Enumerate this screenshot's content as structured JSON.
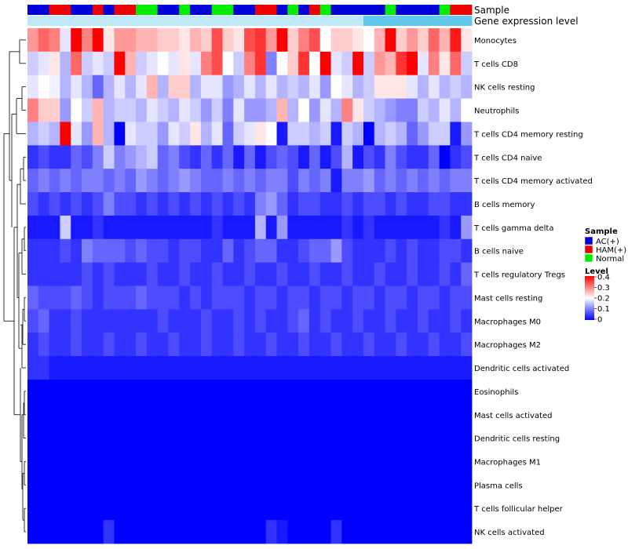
{
  "chart_data": {
    "type": "heatmap",
    "title": "",
    "annotations": {
      "sample_label": "Sample",
      "gene_label": "Gene expression level",
      "sample_groups": [
        "AC(+)",
        "AC(+)",
        "HAM(+)",
        "HAM(+)",
        "AC(+)",
        "AC(+)",
        "HAM(+)",
        "AC(+)",
        "HAM(+)",
        "HAM(+)",
        "Normal",
        "Normal",
        "AC(+)",
        "AC(+)",
        "Normal",
        "AC(+)",
        "AC(+)",
        "Normal",
        "Normal",
        "AC(+)",
        "AC(+)",
        "HAM(+)",
        "HAM(+)",
        "AC(+)",
        "Normal",
        "AC(+)",
        "HAM(+)",
        "Normal",
        "AC(+)",
        "AC(+)",
        "AC(+)",
        "AC(+)",
        "AC(+)",
        "Normal",
        "AC(+)",
        "AC(+)",
        "AC(+)",
        "AC(+)",
        "Normal",
        "HAM(+)",
        "HAM(+)"
      ],
      "gene_level_colors": [
        "#bfe9f8",
        "#bfe9f8",
        "#bfe9f8",
        "#bfe9f8",
        "#bfe9f8",
        "#bfe9f8",
        "#bfe9f8",
        "#bfe9f8",
        "#bfe9f8",
        "#bfe9f8",
        "#bfe9f8",
        "#bfe9f8",
        "#bfe9f8",
        "#bfe9f8",
        "#bfe9f8",
        "#bfe9f8",
        "#bfe9f8",
        "#bfe9f8",
        "#bfe9f8",
        "#bfe9f8",
        "#bfe9f8",
        "#bfe9f8",
        "#bfe9f8",
        "#bfe9f8",
        "#bfe9f8",
        "#bfe9f8",
        "#bfe9f8",
        "#bfe9f8",
        "#bfe9f8",
        "#bfe9f8",
        "#bfe9f8",
        "#62c8ec",
        "#62c8ec",
        "#62c8ec",
        "#62c8ec",
        "#62c8ec",
        "#62c8ec",
        "#62c8ec",
        "#62c8ec",
        "#62c8ec",
        "#62c8ec"
      ]
    },
    "rows": [
      "Monocytes",
      "T cells CD8",
      "NK cells resting",
      "Neutrophils",
      "T cells CD4 memory resting",
      "T cells CD4 naive",
      "T cells CD4 memory activated",
      "B cells memory",
      "T cells gamma delta",
      "B cells naive",
      "T cells regulatory  Tregs",
      "Mast cells resting",
      "Macrophages M0",
      "Macrophages M2",
      "Dendritic cells activated",
      "Eosinophils",
      "Mast cells activated",
      "Dendritic cells resting",
      "Macrophages M1",
      "Plasma cells",
      "T cells follicular helper",
      "NK cells activated"
    ],
    "n_columns": 41,
    "values": [
      [
        0.28,
        0.32,
        0.3,
        0.18,
        0.4,
        0.3,
        0.4,
        0.22,
        0.28,
        0.28,
        0.26,
        0.26,
        0.24,
        0.24,
        0.22,
        0.26,
        0.24,
        0.34,
        0.24,
        0.22,
        0.34,
        0.36,
        0.28,
        0.4,
        0.24,
        0.3,
        0.34,
        0.2,
        0.24,
        0.24,
        0.22,
        0.2,
        0.26,
        0.4,
        0.24,
        0.28,
        0.24,
        0.32,
        0.26,
        0.38,
        0.22
      ],
      [
        0.16,
        0.18,
        0.22,
        0.14,
        0.32,
        0.16,
        0.18,
        0.16,
        0.4,
        0.26,
        0.16,
        0.18,
        0.2,
        0.18,
        0.22,
        0.18,
        0.3,
        0.34,
        0.2,
        0.16,
        0.3,
        0.36,
        0.1,
        0.2,
        0.24,
        0.36,
        0.2,
        0.4,
        0.18,
        0.16,
        0.4,
        0.16,
        0.28,
        0.26,
        0.36,
        0.4,
        0.18,
        0.3,
        0.22,
        0.32,
        0.16
      ],
      [
        0.18,
        0.2,
        0.19,
        0.14,
        0.18,
        0.14,
        0.08,
        0.14,
        0.18,
        0.14,
        0.18,
        0.26,
        0.14,
        0.24,
        0.24,
        0.14,
        0.18,
        0.18,
        0.12,
        0.14,
        0.18,
        0.14,
        0.18,
        0.14,
        0.16,
        0.14,
        0.18,
        0.12,
        0.2,
        0.18,
        0.14,
        0.16,
        0.22,
        0.22,
        0.22,
        0.18,
        0.14,
        0.18,
        0.14,
        0.16,
        0.14
      ],
      [
        0.3,
        0.24,
        0.24,
        0.12,
        0.2,
        0.16,
        0.26,
        0.14,
        0.16,
        0.16,
        0.14,
        0.18,
        0.16,
        0.14,
        0.18,
        0.16,
        0.12,
        0.16,
        0.1,
        0.18,
        0.12,
        0.12,
        0.14,
        0.26,
        0.14,
        0.2,
        0.12,
        0.18,
        0.14,
        0.3,
        0.22,
        0.16,
        0.14,
        0.12,
        0.1,
        0.1,
        0.16,
        0.14,
        0.18,
        0.14,
        0.2
      ],
      [
        0.14,
        0.16,
        0.14,
        0.4,
        0.18,
        0.12,
        0.26,
        0.14,
        0.0,
        0.18,
        0.16,
        0.16,
        0.12,
        0.18,
        0.16,
        0.22,
        0.14,
        0.18,
        0.08,
        0.16,
        0.18,
        0.22,
        0.2,
        0.02,
        0.16,
        0.16,
        0.14,
        0.16,
        0.02,
        0.16,
        0.14,
        0.0,
        0.14,
        0.16,
        0.14,
        0.08,
        0.12,
        0.16,
        0.16,
        0.02,
        0.12
      ],
      [
        0.04,
        0.06,
        0.04,
        0.04,
        0.08,
        0.06,
        0.1,
        0.16,
        0.1,
        0.12,
        0.14,
        0.16,
        0.08,
        0.1,
        0.06,
        0.04,
        0.08,
        0.04,
        0.08,
        0.02,
        0.08,
        0.02,
        0.06,
        0.08,
        0.06,
        0.02,
        0.08,
        0.02,
        0.06,
        0.14,
        0.02,
        0.06,
        0.04,
        0.1,
        0.06,
        0.04,
        0.04,
        0.08,
        0.0,
        0.04,
        0.06
      ],
      [
        0.08,
        0.1,
        0.08,
        0.1,
        0.08,
        0.1,
        0.1,
        0.08,
        0.1,
        0.08,
        0.12,
        0.1,
        0.08,
        0.1,
        0.12,
        0.1,
        0.08,
        0.08,
        0.1,
        0.08,
        0.1,
        0.08,
        0.1,
        0.1,
        0.06,
        0.1,
        0.08,
        0.1,
        0.02,
        0.1,
        0.1,
        0.12,
        0.08,
        0.1,
        0.08,
        0.1,
        0.08,
        0.1,
        0.08,
        0.1,
        0.1
      ],
      [
        0.06,
        0.04,
        0.06,
        0.04,
        0.06,
        0.04,
        0.06,
        0.1,
        0.06,
        0.06,
        0.04,
        0.06,
        0.04,
        0.06,
        0.04,
        0.06,
        0.04,
        0.06,
        0.04,
        0.06,
        0.04,
        0.1,
        0.12,
        0.08,
        0.04,
        0.06,
        0.06,
        0.04,
        0.04,
        0.06,
        0.04,
        0.06,
        0.06,
        0.04,
        0.06,
        0.04,
        0.04,
        0.06,
        0.06,
        0.04,
        0.04
      ],
      [
        0.02,
        0.02,
        0.02,
        0.16,
        0.02,
        0.02,
        0.04,
        0.02,
        0.02,
        0.02,
        0.02,
        0.02,
        0.02,
        0.02,
        0.02,
        0.02,
        0.02,
        0.04,
        0.02,
        0.02,
        0.02,
        0.14,
        0.02,
        0.12,
        0.02,
        0.02,
        0.02,
        0.02,
        0.02,
        0.04,
        0.02,
        0.04,
        0.02,
        0.02,
        0.02,
        0.02,
        0.02,
        0.02,
        0.04,
        0.02,
        0.12
      ],
      [
        0.04,
        0.04,
        0.04,
        0.06,
        0.04,
        0.1,
        0.08,
        0.08,
        0.08,
        0.06,
        0.08,
        0.06,
        0.06,
        0.04,
        0.06,
        0.06,
        0.04,
        0.04,
        0.08,
        0.04,
        0.06,
        0.08,
        0.08,
        0.04,
        0.04,
        0.06,
        0.08,
        0.08,
        0.12,
        0.06,
        0.04,
        0.04,
        0.04,
        0.06,
        0.04,
        0.06,
        0.04,
        0.04,
        0.06,
        0.06,
        0.04
      ],
      [
        0.04,
        0.04,
        0.04,
        0.04,
        0.04,
        0.06,
        0.04,
        0.06,
        0.04,
        0.04,
        0.04,
        0.06,
        0.04,
        0.04,
        0.06,
        0.04,
        0.04,
        0.06,
        0.04,
        0.04,
        0.06,
        0.04,
        0.04,
        0.06,
        0.04,
        0.04,
        0.06,
        0.04,
        0.04,
        0.06,
        0.04,
        0.04,
        0.06,
        0.04,
        0.04,
        0.06,
        0.04,
        0.04,
        0.06,
        0.04,
        0.08
      ],
      [
        0.08,
        0.06,
        0.06,
        0.06,
        0.08,
        0.06,
        0.04,
        0.06,
        0.06,
        0.06,
        0.08,
        0.06,
        0.06,
        0.06,
        0.04,
        0.06,
        0.04,
        0.06,
        0.06,
        0.06,
        0.04,
        0.06,
        0.06,
        0.04,
        0.06,
        0.06,
        0.04,
        0.06,
        0.06,
        0.04,
        0.06,
        0.06,
        0.04,
        0.06,
        0.06,
        0.04,
        0.06,
        0.06,
        0.04,
        0.06,
        0.06
      ],
      [
        0.06,
        0.08,
        0.04,
        0.04,
        0.06,
        0.04,
        0.04,
        0.04,
        0.04,
        0.04,
        0.04,
        0.04,
        0.06,
        0.04,
        0.04,
        0.04,
        0.06,
        0.04,
        0.04,
        0.06,
        0.04,
        0.06,
        0.04,
        0.04,
        0.06,
        0.08,
        0.04,
        0.06,
        0.04,
        0.04,
        0.06,
        0.04,
        0.04,
        0.06,
        0.04,
        0.04,
        0.06,
        0.04,
        0.04,
        0.06,
        0.04
      ],
      [
        0.04,
        0.06,
        0.04,
        0.04,
        0.06,
        0.04,
        0.04,
        0.06,
        0.04,
        0.04,
        0.06,
        0.04,
        0.04,
        0.06,
        0.04,
        0.04,
        0.06,
        0.04,
        0.04,
        0.06,
        0.04,
        0.04,
        0.06,
        0.04,
        0.04,
        0.06,
        0.04,
        0.04,
        0.06,
        0.04,
        0.04,
        0.06,
        0.04,
        0.04,
        0.06,
        0.04,
        0.04,
        0.06,
        0.04,
        0.04,
        0.06
      ],
      [
        0.04,
        0.04,
        0.02,
        0.02,
        0.02,
        0.02,
        0.02,
        0.02,
        0.02,
        0.02,
        0.02,
        0.02,
        0.02,
        0.02,
        0.02,
        0.02,
        0.02,
        0.02,
        0.02,
        0.02,
        0.02,
        0.02,
        0.02,
        0.02,
        0.02,
        0.02,
        0.02,
        0.02,
        0.02,
        0.02,
        0.02,
        0.02,
        0.02,
        0.02,
        0.02,
        0.02,
        0.02,
        0.02,
        0.02,
        0.02,
        0.02
      ],
      [
        0,
        0,
        0,
        0,
        0,
        0,
        0,
        0,
        0,
        0,
        0,
        0,
        0,
        0,
        0,
        0,
        0,
        0,
        0,
        0,
        0,
        0,
        0,
        0,
        0,
        0,
        0,
        0,
        0,
        0,
        0,
        0,
        0,
        0,
        0,
        0,
        0,
        0,
        0,
        0,
        0
      ],
      [
        0,
        0,
        0,
        0,
        0,
        0,
        0,
        0,
        0,
        0,
        0,
        0,
        0,
        0,
        0,
        0,
        0,
        0,
        0,
        0,
        0,
        0,
        0,
        0,
        0,
        0,
        0,
        0,
        0,
        0,
        0,
        0,
        0,
        0,
        0,
        0,
        0,
        0,
        0,
        0,
        0
      ],
      [
        0,
        0,
        0,
        0,
        0,
        0,
        0,
        0,
        0,
        0,
        0,
        0,
        0,
        0,
        0,
        0,
        0,
        0,
        0,
        0,
        0,
        0,
        0,
        0,
        0,
        0,
        0,
        0,
        0,
        0,
        0,
        0,
        0,
        0,
        0,
        0,
        0,
        0,
        0,
        0,
        0
      ],
      [
        0,
        0,
        0,
        0,
        0,
        0,
        0,
        0,
        0,
        0,
        0,
        0,
        0,
        0,
        0,
        0,
        0,
        0,
        0,
        0,
        0,
        0,
        0,
        0,
        0,
        0,
        0,
        0,
        0,
        0,
        0,
        0,
        0,
        0,
        0,
        0,
        0,
        0,
        0,
        0,
        0
      ],
      [
        0,
        0,
        0,
        0,
        0,
        0,
        0,
        0,
        0,
        0,
        0,
        0,
        0,
        0,
        0,
        0,
        0,
        0,
        0,
        0,
        0,
        0,
        0,
        0,
        0,
        0,
        0,
        0,
        0,
        0,
        0,
        0,
        0,
        0,
        0,
        0,
        0,
        0,
        0,
        0,
        0
      ],
      [
        0,
        0,
        0,
        0,
        0,
        0,
        0,
        0,
        0,
        0,
        0,
        0,
        0,
        0,
        0,
        0,
        0,
        0,
        0,
        0,
        0,
        0,
        0,
        0,
        0,
        0,
        0,
        0,
        0,
        0,
        0,
        0,
        0,
        0,
        0,
        0,
        0,
        0,
        0,
        0,
        0
      ],
      [
        0,
        0,
        0,
        0,
        0,
        0,
        0,
        0.04,
        0,
        0,
        0,
        0,
        0,
        0,
        0,
        0,
        0,
        0,
        0,
        0,
        0,
        0,
        0.04,
        0.02,
        0,
        0,
        0,
        0,
        0.04,
        0,
        0,
        0,
        0,
        0,
        0,
        0,
        0,
        0,
        0,
        0,
        0
      ]
    ],
    "color_scale": {
      "min": 0,
      "max": 0.4,
      "low_color": "#0000ff",
      "mid_color": "#ffffff",
      "high_color": "#ff0000",
      "mid_value": 0.2
    },
    "legend": {
      "sample_title": "Sample",
      "sample_entries": [
        {
          "label": "AC(+)",
          "color": "#0000dd"
        },
        {
          "label": "HAM(+)",
          "color": "#ee0000"
        },
        {
          "label": "Normal",
          "color": "#00ee00"
        }
      ],
      "level_title": "Level",
      "level_ticks": [
        "0.4",
        "0.3",
        "0.2",
        "0.1",
        "0"
      ],
      "level_tick_values": [
        0.4,
        0.3,
        0.2,
        0.1,
        0
      ],
      "position": "right"
    }
  }
}
